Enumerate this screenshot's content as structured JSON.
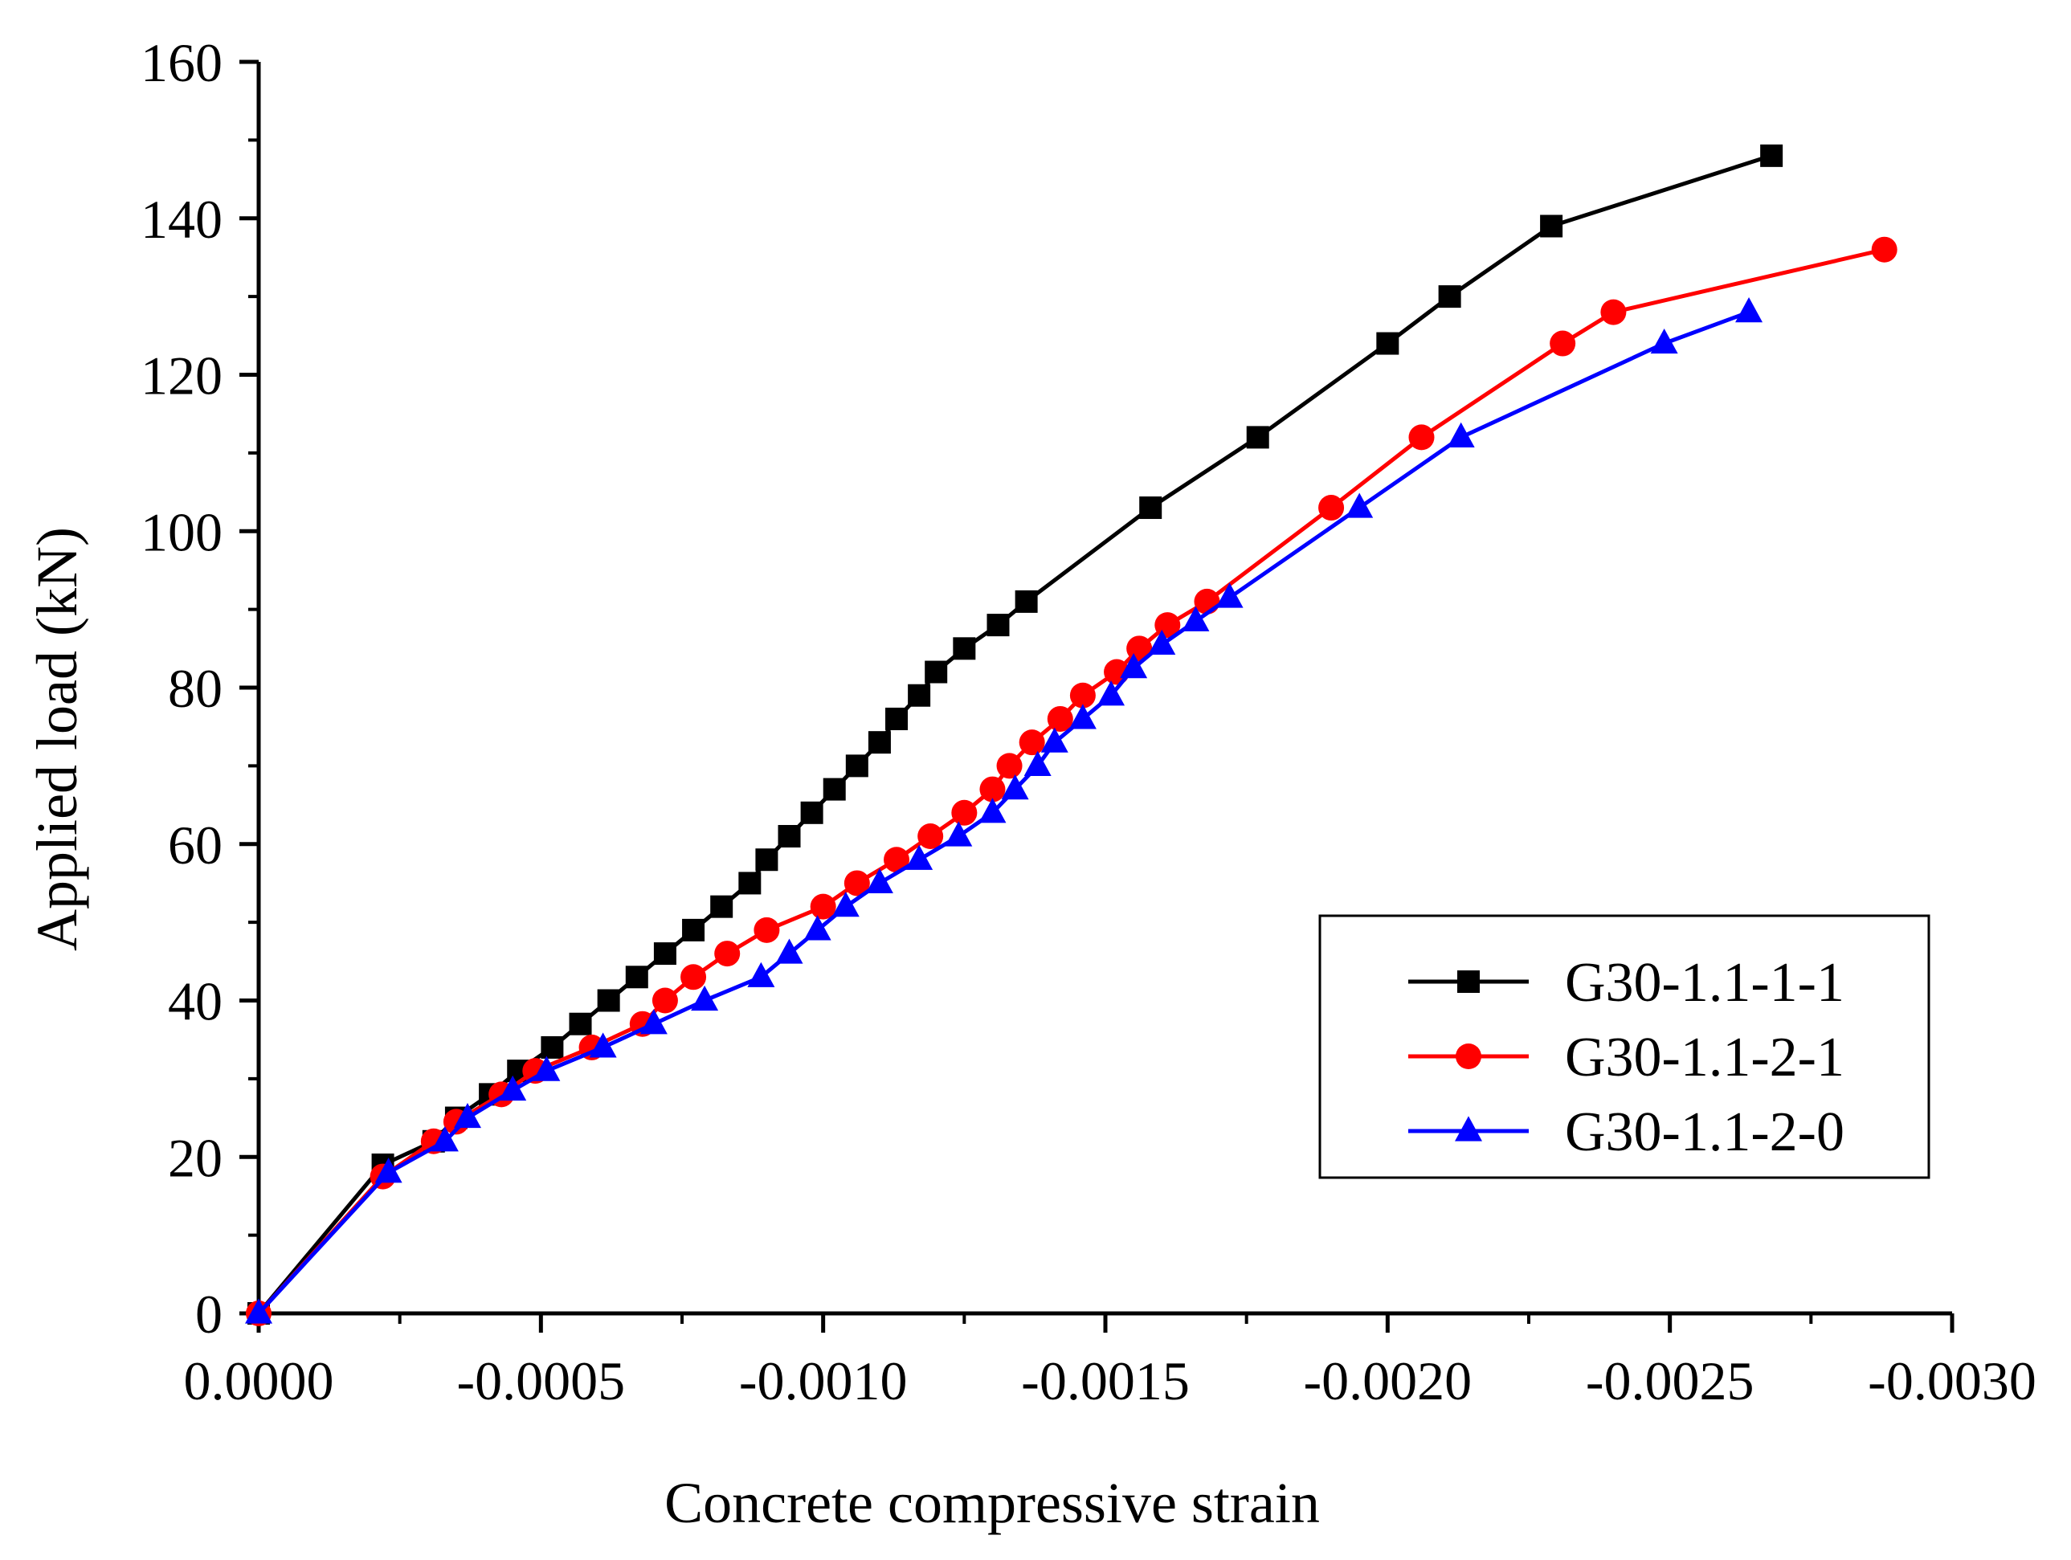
{
  "chart_data": {
    "type": "line",
    "title": "",
    "xlabel": "Concrete compressive strain",
    "ylabel": "Applied load (kN)",
    "xlim": [
      0.0,
      -0.003
    ],
    "ylim": [
      0,
      160
    ],
    "x_ticks": [
      {
        "value": 0.0,
        "label": "0.0000"
      },
      {
        "value": -0.0005,
        "label": "-0.0005"
      },
      {
        "value": -0.001,
        "label": "-0.0010"
      },
      {
        "value": -0.0015,
        "label": "-0.0015"
      },
      {
        "value": -0.002,
        "label": "-0.0020"
      },
      {
        "value": -0.0025,
        "label": "-0.0025"
      },
      {
        "value": -0.003,
        "label": "-0.0030"
      }
    ],
    "y_ticks": [
      {
        "value": 0,
        "label": "0"
      },
      {
        "value": 20,
        "label": "20"
      },
      {
        "value": 40,
        "label": "40"
      },
      {
        "value": 60,
        "label": "60"
      },
      {
        "value": 80,
        "label": "80"
      },
      {
        "value": 100,
        "label": "100"
      },
      {
        "value": 120,
        "label": "120"
      },
      {
        "value": 140,
        "label": "140"
      },
      {
        "value": 160,
        "label": "160"
      }
    ],
    "grid": false,
    "legend_position": "bottom-right",
    "series": [
      {
        "name": "G30-1.1-1-1",
        "color": "#000000",
        "marker": "square",
        "points": [
          [
            0.0,
            0
          ],
          [
            -0.00022,
            19
          ],
          [
            -0.00031,
            22
          ],
          [
            -0.00035,
            25
          ],
          [
            -0.00041,
            28
          ],
          [
            -0.00046,
            31
          ],
          [
            -0.00052,
            34
          ],
          [
            -0.00057,
            37
          ],
          [
            -0.00062,
            40
          ],
          [
            -0.00067,
            43
          ],
          [
            -0.00072,
            46
          ],
          [
            -0.00077,
            49
          ],
          [
            -0.00082,
            52
          ],
          [
            -0.00087,
            55
          ],
          [
            -0.0009,
            58
          ],
          [
            -0.00094,
            61
          ],
          [
            -0.00098,
            64
          ],
          [
            -0.00102,
            67
          ],
          [
            -0.00106,
            70
          ],
          [
            -0.0011,
            73
          ],
          [
            -0.00113,
            76
          ],
          [
            -0.00117,
            79
          ],
          [
            -0.0012,
            82
          ],
          [
            -0.00125,
            85
          ],
          [
            -0.00131,
            88
          ],
          [
            -0.00136,
            91
          ],
          [
            -0.00158,
            103
          ],
          [
            -0.00177,
            112
          ],
          [
            -0.002,
            124
          ],
          [
            -0.00211,
            130
          ],
          [
            -0.00229,
            139
          ],
          [
            -0.00268,
            148
          ]
        ]
      },
      {
        "name": "G30-1.1-2-1",
        "color": "#ff0000",
        "marker": "circle",
        "points": [
          [
            0.0,
            0
          ],
          [
            -0.00022,
            17.5
          ],
          [
            -0.00031,
            22
          ],
          [
            -0.00035,
            24.5
          ],
          [
            -0.00043,
            28
          ],
          [
            -0.00049,
            31
          ],
          [
            -0.00059,
            34
          ],
          [
            -0.00068,
            37
          ],
          [
            -0.00072,
            40
          ],
          [
            -0.00077,
            43
          ],
          [
            -0.00083,
            46
          ],
          [
            -0.0009,
            49
          ],
          [
            -0.001,
            52
          ],
          [
            -0.00106,
            55
          ],
          [
            -0.00113,
            58
          ],
          [
            -0.00119,
            61
          ],
          [
            -0.00125,
            64
          ],
          [
            -0.0013,
            67
          ],
          [
            -0.00133,
            70
          ],
          [
            -0.00137,
            73
          ],
          [
            -0.00142,
            76
          ],
          [
            -0.00146,
            79
          ],
          [
            -0.00152,
            82
          ],
          [
            -0.00156,
            85
          ],
          [
            -0.00161,
            88
          ],
          [
            -0.00168,
            91
          ],
          [
            -0.0019,
            103
          ],
          [
            -0.00206,
            112
          ],
          [
            -0.00231,
            124
          ],
          [
            -0.0024,
            128
          ],
          [
            -0.00288,
            136
          ]
        ]
      },
      {
        "name": "G30-1.1-2-0",
        "color": "#0000ff",
        "marker": "triangle",
        "points": [
          [
            0.0,
            0
          ],
          [
            -0.00023,
            18
          ],
          [
            -0.00033,
            22
          ],
          [
            -0.00037,
            25
          ],
          [
            -0.00045,
            28.5
          ],
          [
            -0.00051,
            31
          ],
          [
            -0.00061,
            34
          ],
          [
            -0.0007,
            37
          ],
          [
            -0.00079,
            40
          ],
          [
            -0.00089,
            43
          ],
          [
            -0.00094,
            46
          ],
          [
            -0.00099,
            49
          ],
          [
            -0.00104,
            52
          ],
          [
            -0.0011,
            55
          ],
          [
            -0.00117,
            58
          ],
          [
            -0.00124,
            61
          ],
          [
            -0.0013,
            64
          ],
          [
            -0.00134,
            67
          ],
          [
            -0.00138,
            70
          ],
          [
            -0.00141,
            73
          ],
          [
            -0.00146,
            76
          ],
          [
            -0.00151,
            79
          ],
          [
            -0.00155,
            82.5
          ],
          [
            -0.0016,
            85.5
          ],
          [
            -0.00166,
            88.5
          ],
          [
            -0.00172,
            91.5
          ],
          [
            -0.00195,
            103
          ],
          [
            -0.00213,
            112
          ],
          [
            -0.00249,
            124
          ],
          [
            -0.00264,
            128
          ]
        ]
      }
    ]
  }
}
